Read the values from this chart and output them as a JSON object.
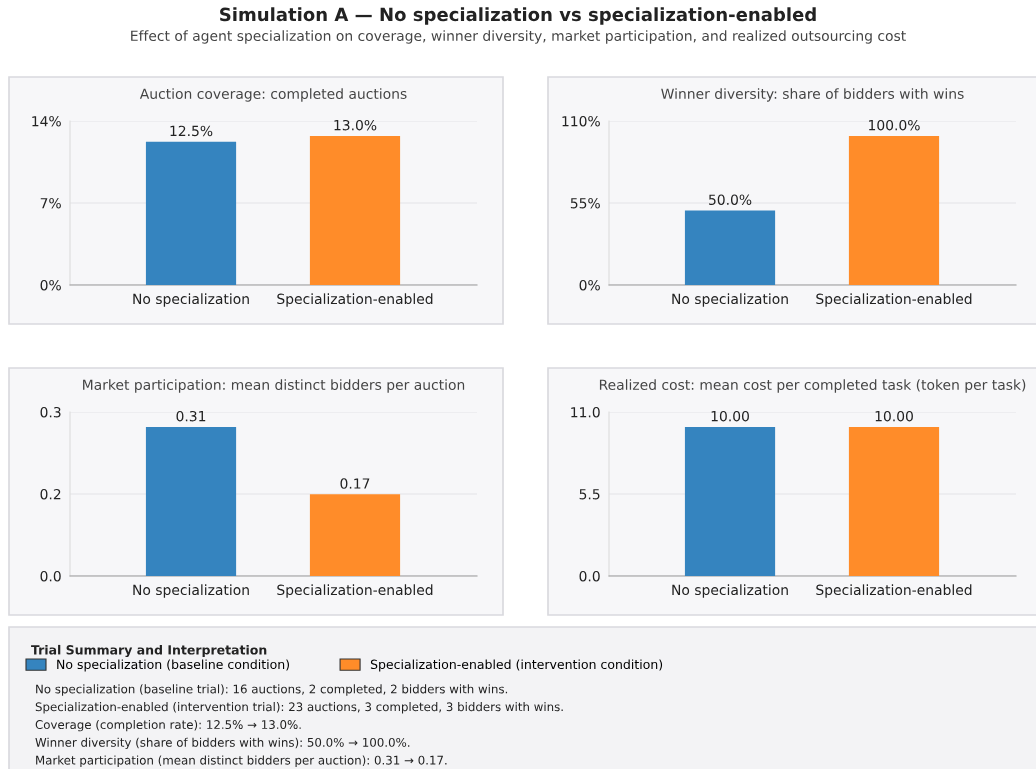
{
  "chart_data": [
    {
      "type": "other",
      "title": "Simulation A — No specialization vs specialization-enabled",
      "subtitle": "Effect of agent specialization on coverage, winner diversity, market participation, and realized outsourcing cost"
    },
    {
      "type": "bar",
      "title": "Auction coverage: completed auctions",
      "categories": [
        "No specialization",
        "Specialization-enabled"
      ],
      "values": [
        12.5,
        13.0
      ],
      "colors": [
        "#3584bf",
        "#ff8c29"
      ],
      "value_labels": [
        "12.5%",
        "13.0%"
      ],
      "ylim": [
        0,
        14.3
      ],
      "yticks": [
        {
          "value": 0,
          "label": "0%"
        },
        {
          "value": 7.15,
          "label": "7%"
        },
        {
          "value": 14.3,
          "label": "14%"
        }
      ],
      "grid": "y"
    },
    {
      "type": "bar",
      "title": "Winner diversity: share of bidders with wins",
      "categories": [
        "No specialization",
        "Specialization-enabled"
      ],
      "values": [
        50.0,
        100.0
      ],
      "colors": [
        "#3584bf",
        "#ff8c29"
      ],
      "value_labels": [
        "50.0%",
        "100.0%"
      ],
      "ylim": [
        0,
        110
      ],
      "yticks": [
        {
          "value": 0,
          "label": "0%"
        },
        {
          "value": 55,
          "label": "55%"
        },
        {
          "value": 110,
          "label": "110%"
        }
      ],
      "grid": "y"
    },
    {
      "type": "bar",
      "title": "Market participation: mean distinct bidders per auction",
      "categories": [
        "No specialization",
        "Specialization-enabled"
      ],
      "values": [
        0.31,
        0.17
      ],
      "colors": [
        "#3584bf",
        "#ff8c29"
      ],
      "value_labels": [
        "0.31",
        "0.17"
      ],
      "ylim": [
        0,
        0.341
      ],
      "yticks": [
        {
          "value": 0,
          "label": "0.0"
        },
        {
          "value": 0.1705,
          "label": "0.2"
        },
        {
          "value": 0.341,
          "label": "0.3"
        }
      ],
      "grid": "y"
    },
    {
      "type": "bar",
      "title": "Realized cost: mean cost per completed task (token per task)",
      "categories": [
        "No specialization",
        "Specialization-enabled"
      ],
      "values": [
        10.0,
        10.0
      ],
      "colors": [
        "#3584bf",
        "#ff8c29"
      ],
      "value_labels": [
        "10.00",
        "10.00"
      ],
      "ylim": [
        0,
        11
      ],
      "yticks": [
        {
          "value": 0,
          "label": "0.0"
        },
        5.5,
        {
          "value": 11,
          "label": "11.0"
        }
      ],
      "grid": "y"
    },
    {
      "type": "other",
      "title": "Trial Summary and Interpretation",
      "legend": "top left",
      "series": [
        {
          "name": "No specialization (baseline condition)",
          "color": "#3584bf"
        },
        {
          "name": "Specialization-enabled (intervention condition)",
          "color": "#ff8c29"
        }
      ],
      "annotations": [
        "No specialization (baseline trial): 16 auctions, 2 completed, 2 bidders with wins.",
        "Specialization-enabled (intervention trial): 23 auctions, 3 completed, 3 bidders with wins.",
        "Coverage (completion rate): 12.5% → 13.0%.",
        "Winner diversity (share of bidders with wins): 50.0% → 100.0%.",
        "Market participation (mean distinct bidders per auction): 0.31 → 0.17."
      ]
    }
  ]
}
